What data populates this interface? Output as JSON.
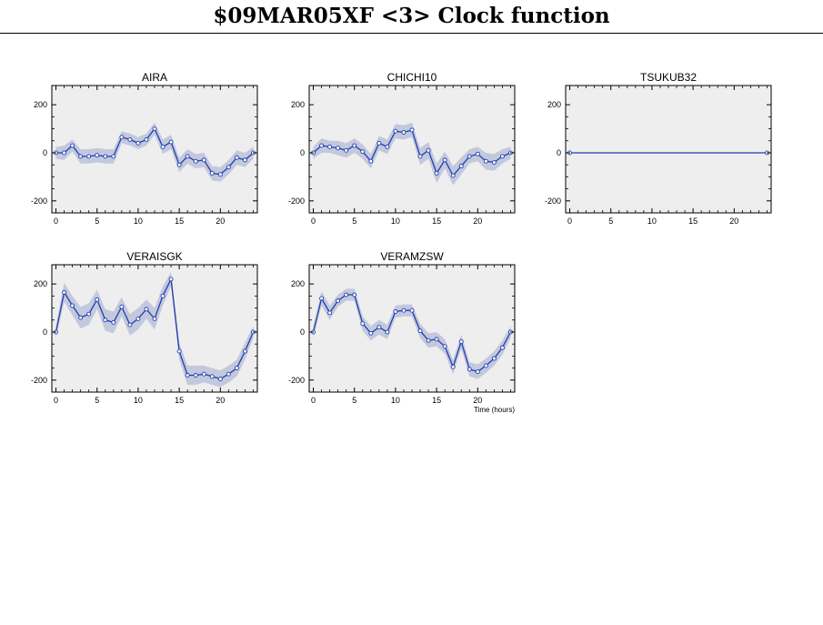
{
  "header": {
    "title": "$09MAR05XF <3>  Clock function"
  },
  "chart_data": [
    {
      "type": "line",
      "title": "AIRA",
      "xlabel": "",
      "ylabel": "",
      "xlim": [
        -0.5,
        24.5
      ],
      "ylim": [
        -250,
        280
      ],
      "xticks": [
        0,
        5,
        10,
        15,
        20
      ],
      "yticks": [
        -200,
        0,
        200
      ],
      "grid": false,
      "band_color": "#c3c8dd",
      "line_color": "#1f3fae",
      "x": [
        0,
        1,
        2,
        3,
        4,
        5,
        6,
        7,
        8,
        9,
        10,
        11,
        12,
        13,
        14,
        15,
        16,
        17,
        18,
        19,
        20,
        21,
        22,
        23,
        24
      ],
      "values": [
        0,
        0,
        30,
        -15,
        -15,
        -10,
        -15,
        -15,
        65,
        55,
        40,
        55,
        100,
        25,
        45,
        -50,
        -15,
        -35,
        -30,
        -85,
        -90,
        -60,
        -20,
        -30,
        0
      ],
      "band": [
        25,
        30,
        25,
        30,
        30,
        30,
        30,
        30,
        25,
        25,
        25,
        25,
        25,
        30,
        30,
        30,
        30,
        30,
        30,
        30,
        30,
        30,
        30,
        30,
        25
      ]
    },
    {
      "type": "line",
      "title": "CHICHI10",
      "xlabel": "",
      "ylabel": "",
      "xlim": [
        -0.5,
        24.5
      ],
      "ylim": [
        -250,
        280
      ],
      "xticks": [
        0,
        5,
        10,
        15,
        20
      ],
      "yticks": [
        -200,
        0,
        200
      ],
      "grid": false,
      "band_color": "#c3c8dd",
      "line_color": "#1f3fae",
      "x": [
        0,
        1,
        2,
        3,
        4,
        5,
        6,
        7,
        8,
        9,
        10,
        11,
        12,
        13,
        14,
        15,
        16,
        17,
        18,
        19,
        20,
        21,
        22,
        23,
        24
      ],
      "values": [
        0,
        30,
        25,
        20,
        10,
        30,
        5,
        -35,
        40,
        25,
        90,
        85,
        95,
        -15,
        10,
        -85,
        -30,
        -95,
        -55,
        -15,
        -5,
        -35,
        -40,
        -15,
        0
      ],
      "band": [
        25,
        30,
        25,
        30,
        30,
        30,
        30,
        30,
        30,
        30,
        30,
        30,
        30,
        35,
        35,
        40,
        35,
        40,
        35,
        30,
        30,
        35,
        35,
        30,
        25
      ]
    },
    {
      "type": "line",
      "title": "TSUKUB32",
      "xlabel": "",
      "ylabel": "",
      "xlim": [
        -0.5,
        24.5
      ],
      "ylim": [
        -250,
        280
      ],
      "xticks": [
        0,
        5,
        10,
        15,
        20
      ],
      "yticks": [
        -200,
        0,
        200
      ],
      "grid": false,
      "band_color": "#c3c8dd",
      "line_color": "#1f3fae",
      "x": [
        0,
        24
      ],
      "values": [
        0,
        0
      ],
      "band": [
        0,
        0
      ]
    },
    {
      "type": "line",
      "title": "VERAISGK",
      "xlabel": "",
      "ylabel": "",
      "xlim": [
        -0.5,
        24.5
      ],
      "ylim": [
        -250,
        280
      ],
      "xticks": [
        0,
        5,
        10,
        15,
        20
      ],
      "yticks": [
        -200,
        0,
        200
      ],
      "grid": false,
      "band_color": "#c3c8dd",
      "line_color": "#1f3fae",
      "x": [
        0,
        1,
        2,
        3,
        4,
        5,
        6,
        7,
        8,
        9,
        10,
        11,
        12,
        13,
        14,
        15,
        16,
        17,
        18,
        19,
        20,
        21,
        22,
        23,
        24
      ],
      "values": [
        0,
        165,
        110,
        60,
        75,
        135,
        50,
        40,
        105,
        30,
        55,
        95,
        55,
        150,
        220,
        -80,
        -180,
        -180,
        -175,
        -185,
        -195,
        -175,
        -150,
        -80,
        0
      ],
      "band": [
        25,
        40,
        40,
        45,
        45,
        40,
        45,
        45,
        40,
        45,
        45,
        40,
        45,
        40,
        30,
        35,
        40,
        40,
        35,
        35,
        35,
        35,
        35,
        35,
        25
      ]
    },
    {
      "type": "line",
      "title": "VERAMZSW",
      "xlabel": "Time (hours)",
      "ylabel": "",
      "xlim": [
        -0.5,
        24.5
      ],
      "ylim": [
        -250,
        280
      ],
      "xticks": [
        0,
        5,
        10,
        15,
        20
      ],
      "yticks": [
        -200,
        0,
        200
      ],
      "grid": false,
      "band_color": "#c3c8dd",
      "line_color": "#1f3fae",
      "x": [
        0,
        1,
        2,
        3,
        4,
        5,
        6,
        7,
        8,
        9,
        10,
        11,
        12,
        13,
        14,
        15,
        16,
        17,
        18,
        19,
        20,
        21,
        22,
        23,
        24
      ],
      "values": [
        0,
        140,
        80,
        130,
        155,
        155,
        35,
        -5,
        20,
        0,
        85,
        90,
        90,
        5,
        -35,
        -30,
        -60,
        -145,
        -40,
        -155,
        -165,
        -140,
        -110,
        -65,
        0
      ],
      "band": [
        25,
        30,
        30,
        25,
        25,
        25,
        30,
        30,
        30,
        30,
        25,
        25,
        25,
        30,
        30,
        30,
        30,
        30,
        30,
        30,
        30,
        30,
        30,
        30,
        25
      ]
    }
  ]
}
